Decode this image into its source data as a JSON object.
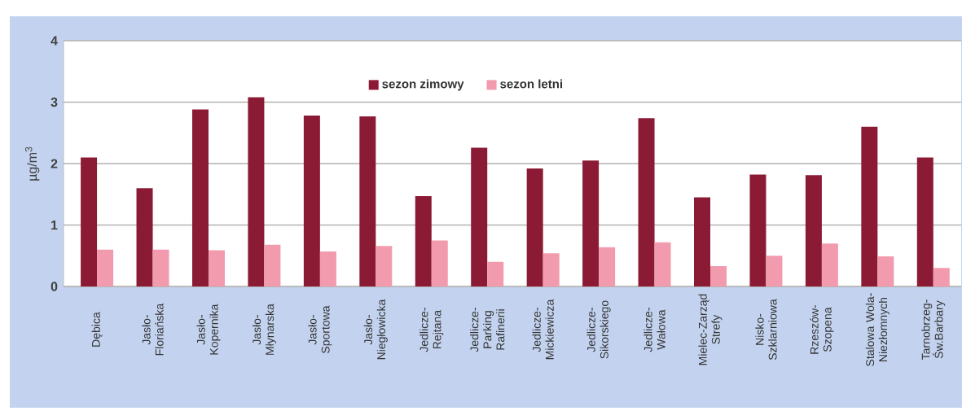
{
  "chart_data": {
    "type": "bar",
    "ylabel": "µg/m$^{3}$",
    "categories": [
      "Dębica",
      "Jasło-Floriańska",
      "Jasło-Kopernika",
      "Jasło-Młynarska",
      "Jasło-Sportowa",
      "Jasło-Niegłowicka",
      "Jedlicze-Rejtana",
      "Jedlicze-Parking Rafinerii",
      "Jedlicze-Mickiewicza",
      "Jedlicze-Sikorskiego",
      "Jedlicze-Wałowa",
      "Mielec-Zarząd Strefy",
      "Nisko-Szklarniowa",
      "Rzeszów-Szopena",
      "Stalowa Wola-Niezłomnych",
      "Tarnobrzeg-Św.Barbary"
    ],
    "series": [
      {
        "name": "sezon zimowy",
        "color": "#8b1a35",
        "values": [
          2.1,
          1.6,
          2.88,
          3.08,
          2.78,
          2.77,
          1.47,
          2.26,
          1.92,
          2.05,
          2.74,
          1.45,
          1.82,
          1.81,
          2.6,
          2.1
        ]
      },
      {
        "name": "sezon letni",
        "color": "#f29aae",
        "values": [
          0.6,
          0.6,
          0.59,
          0.68,
          0.57,
          0.66,
          0.75,
          0.4,
          0.54,
          0.64,
          0.72,
          0.33,
          0.5,
          0.7,
          0.49,
          0.3
        ]
      }
    ],
    "ylim": [
      0,
      4
    ],
    "yticks": [
      0,
      1,
      2,
      3,
      4
    ],
    "grid": "y",
    "legend": "top"
  }
}
